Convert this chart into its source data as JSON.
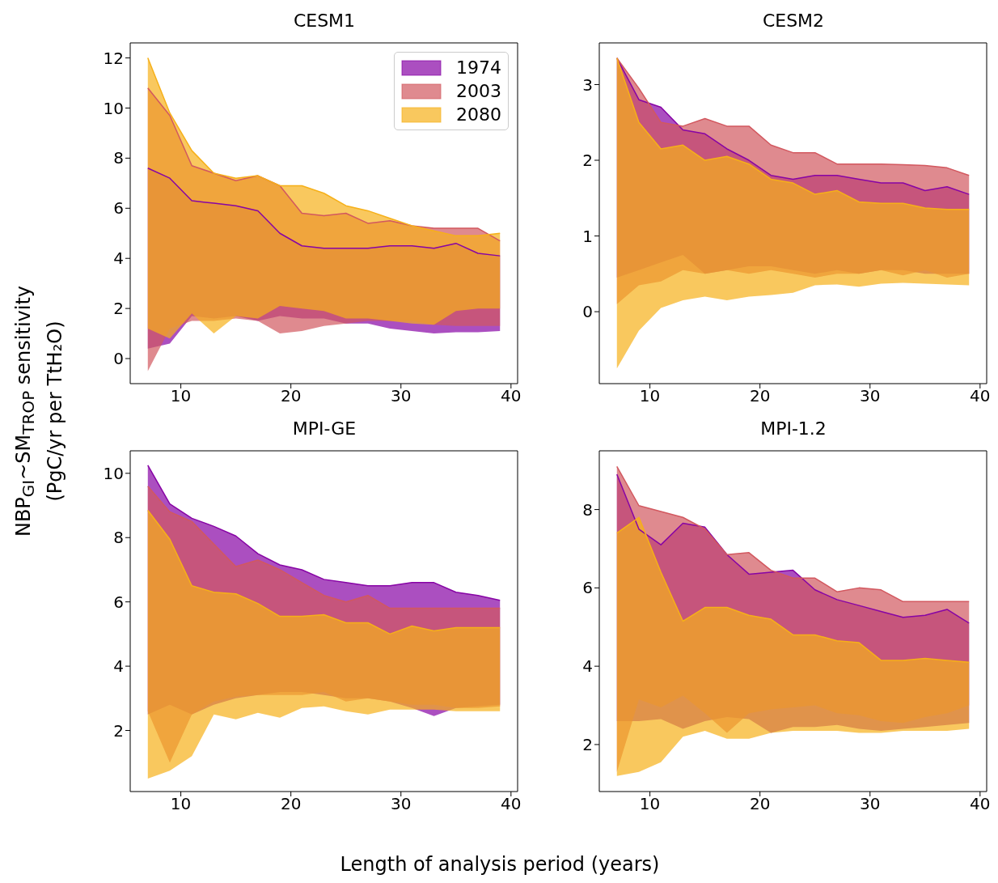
{
  "chart_data": [
    {
      "type": "line",
      "title": "CESM1",
      "ylabel": "NBP$_{GI}$~SM$_{TROP}$ sensitivity\n(PgC/yr per TtH₂O)",
      "x": [
        7,
        9,
        11,
        13,
        15,
        17,
        19,
        21,
        23,
        25,
        27,
        29,
        31,
        33,
        35,
        37,
        39
      ],
      "xlim": [
        5.4,
        40.6
      ],
      "xticks": [
        10,
        20,
        30,
        40
      ],
      "ylim": [
        -1.0,
        12.6
      ],
      "yticks": [
        0,
        2,
        4,
        6,
        8,
        10,
        12
      ],
      "legend": "top right",
      "series": [
        {
          "name": "1974",
          "color": "#8704a5",
          "lower": [
            0.4,
            0.6,
            1.7,
            1.6,
            1.7,
            1.5,
            1.7,
            1.6,
            1.6,
            1.4,
            1.4,
            1.2,
            1.1,
            1.0,
            1.05,
            1.05,
            1.1
          ],
          "upper": [
            7.6,
            7.2,
            6.3,
            6.2,
            6.1,
            5.9,
            5.0,
            4.5,
            4.4,
            4.4,
            4.4,
            4.5,
            4.5,
            4.4,
            4.6,
            4.2,
            4.1
          ],
          "values": [
            7.6,
            7.2,
            6.3,
            6.2,
            6.1,
            5.9,
            5.0,
            4.5,
            4.4,
            4.4,
            4.4,
            4.5,
            4.5,
            4.4,
            4.6,
            4.2,
            4.1
          ]
        },
        {
          "name": "2003",
          "color": "#d2585f",
          "lower": [
            -0.5,
            1.2,
            1.5,
            1.5,
            1.6,
            1.5,
            1.0,
            1.1,
            1.3,
            1.4,
            1.5,
            1.5,
            1.5,
            1.35,
            1.3,
            1.3,
            1.3
          ],
          "upper": [
            10.8,
            9.7,
            7.7,
            7.4,
            7.1,
            7.3,
            6.9,
            5.8,
            5.7,
            5.8,
            5.4,
            5.5,
            5.3,
            5.2,
            5.2,
            5.2,
            4.7
          ],
          "values": [
            10.8,
            9.7,
            7.7,
            7.4,
            7.1,
            7.3,
            6.9,
            5.8,
            5.7,
            5.8,
            5.4,
            5.5,
            5.3,
            5.2,
            5.2,
            5.2,
            4.7
          ]
        },
        {
          "name": "2080",
          "color": "#f6b019",
          "lower": [
            1.2,
            0.8,
            1.8,
            1.0,
            1.7,
            1.6,
            2.1,
            2.0,
            1.9,
            1.6,
            1.6,
            1.5,
            1.4,
            1.35,
            1.9,
            2.0,
            2.0
          ],
          "upper": [
            12.0,
            9.8,
            8.3,
            7.4,
            7.2,
            7.3,
            6.9,
            6.9,
            6.6,
            6.1,
            5.9,
            5.6,
            5.3,
            5.1,
            4.9,
            4.9,
            5.0
          ],
          "values": [
            12.0,
            9.8,
            8.3,
            7.4,
            7.2,
            7.3,
            6.9,
            6.9,
            6.6,
            6.1,
            5.9,
            5.6,
            5.3,
            5.1,
            4.9,
            4.9,
            5.0
          ]
        }
      ]
    },
    {
      "type": "line",
      "title": "CESM2",
      "x": [
        7,
        9,
        11,
        13,
        15,
        17,
        19,
        21,
        23,
        25,
        27,
        29,
        31,
        33,
        35,
        37,
        39
      ],
      "xlim": [
        5.4,
        40.6
      ],
      "xticks": [
        10,
        20,
        30,
        40
      ],
      "ylim": [
        -0.95,
        3.55
      ],
      "yticks": [
        0,
        1,
        2,
        3
      ],
      "series": [
        {
          "color": "#8704a5",
          "lower": [
            0.45,
            0.55,
            0.65,
            0.75,
            0.5,
            0.55,
            0.6,
            0.6,
            0.55,
            0.5,
            0.55,
            0.5,
            0.55,
            0.55,
            0.5,
            0.5,
            0.5
          ],
          "upper": [
            3.35,
            2.8,
            2.7,
            2.4,
            2.35,
            2.15,
            2.0,
            1.8,
            1.75,
            1.8,
            1.8,
            1.75,
            1.7,
            1.7,
            1.6,
            1.65,
            1.55
          ],
          "values": [
            3.35,
            2.8,
            2.7,
            2.4,
            2.35,
            2.15,
            2.0,
            1.8,
            1.75,
            1.8,
            1.8,
            1.75,
            1.7,
            1.7,
            1.6,
            1.65,
            1.55
          ]
        },
        {
          "color": "#d2585f",
          "lower": [
            0.1,
            0.35,
            0.4,
            0.55,
            0.5,
            0.55,
            0.5,
            0.55,
            0.5,
            0.45,
            0.5,
            0.5,
            0.55,
            0.48,
            0.55,
            0.45,
            0.5
          ],
          "upper": [
            3.35,
            2.95,
            2.5,
            2.45,
            2.55,
            2.45,
            2.45,
            2.2,
            2.1,
            2.1,
            1.95,
            1.95,
            1.95,
            1.94,
            1.93,
            1.9,
            1.8
          ],
          "values": [
            3.35,
            2.95,
            2.5,
            2.45,
            2.55,
            2.45,
            2.45,
            2.2,
            2.1,
            2.1,
            1.95,
            1.95,
            1.95,
            1.94,
            1.93,
            1.9,
            1.8
          ]
        },
        {
          "color": "#f6b019",
          "lower": [
            -0.75,
            -0.25,
            0.05,
            0.15,
            0.2,
            0.15,
            0.2,
            0.22,
            0.25,
            0.35,
            0.36,
            0.33,
            0.37,
            0.38,
            0.37,
            0.36,
            0.35
          ],
          "upper": [
            3.35,
            2.5,
            2.15,
            2.2,
            2.0,
            2.05,
            1.95,
            1.75,
            1.7,
            1.55,
            1.6,
            1.45,
            1.43,
            1.43,
            1.37,
            1.35,
            1.35
          ],
          "values": [
            3.35,
            2.5,
            2.15,
            2.2,
            2.0,
            2.05,
            1.95,
            1.75,
            1.7,
            1.55,
            1.6,
            1.45,
            1.43,
            1.43,
            1.37,
            1.35,
            1.35
          ]
        }
      ]
    },
    {
      "type": "line",
      "title": "MPI-GE",
      "xlabel": "Length of analysis period (years)",
      "x": [
        7,
        9,
        11,
        13,
        15,
        17,
        19,
        21,
        23,
        25,
        27,
        29,
        31,
        33,
        35,
        37,
        39
      ],
      "xlim": [
        5.4,
        40.6
      ],
      "xticks": [
        10,
        20,
        30,
        40
      ],
      "ylim": [
        0.1,
        10.7
      ],
      "yticks": [
        2,
        4,
        6,
        8,
        10
      ],
      "series": [
        {
          "color": "#8704a5",
          "lower": [
            2.5,
            2.8,
            2.5,
            2.8,
            3.0,
            3.1,
            3.2,
            3.2,
            3.1,
            3.0,
            3.0,
            2.9,
            2.7,
            2.45,
            2.7,
            2.75,
            2.8
          ],
          "upper": [
            10.25,
            9.05,
            8.6,
            8.35,
            8.05,
            7.5,
            7.15,
            7.0,
            6.7,
            6.6,
            6.5,
            6.5,
            6.6,
            6.6,
            6.3,
            6.2,
            6.05
          ],
          "values": [
            10.25,
            9.05,
            8.6,
            8.35,
            8.05,
            7.5,
            7.15,
            7.0,
            6.7,
            6.6,
            6.5,
            6.5,
            6.6,
            6.6,
            6.3,
            6.2,
            6.05
          ]
        },
        {
          "color": "#d2585f",
          "lower": [
            2.6,
            1.0,
            2.5,
            2.9,
            3.05,
            3.1,
            3.1,
            3.1,
            3.2,
            2.9,
            3.0,
            2.9,
            2.8,
            2.8,
            2.7,
            2.7,
            2.75
          ],
          "upper": [
            9.6,
            8.8,
            8.5,
            7.8,
            7.1,
            7.3,
            7.0,
            6.6,
            6.2,
            6.0,
            6.2,
            5.8,
            5.8,
            5.8,
            5.8,
            5.8,
            5.8
          ],
          "values": [
            9.6,
            8.8,
            8.5,
            7.8,
            7.1,
            7.3,
            7.0,
            6.6,
            6.2,
            6.0,
            6.2,
            5.8,
            5.8,
            5.8,
            5.8,
            5.8,
            5.8
          ]
        },
        {
          "color": "#f6b019",
          "lower": [
            0.5,
            0.75,
            1.2,
            2.5,
            2.35,
            2.55,
            2.4,
            2.7,
            2.75,
            2.6,
            2.5,
            2.65,
            2.65,
            2.65,
            2.6,
            2.6,
            2.6
          ],
          "upper": [
            8.85,
            7.95,
            6.5,
            6.3,
            6.25,
            5.95,
            5.55,
            5.55,
            5.6,
            5.35,
            5.35,
            5.0,
            5.25,
            5.1,
            5.2,
            5.2,
            5.2
          ],
          "values": [
            8.85,
            7.95,
            6.5,
            6.3,
            6.25,
            5.95,
            5.55,
            5.55,
            5.6,
            5.35,
            5.35,
            5.0,
            5.25,
            5.1,
            5.2,
            5.2,
            5.2
          ]
        }
      ]
    },
    {
      "type": "line",
      "title": "MPI-1.2",
      "x": [
        7,
        9,
        11,
        13,
        15,
        17,
        19,
        21,
        23,
        25,
        27,
        29,
        31,
        33,
        35,
        37,
        39
      ],
      "xlim": [
        5.4,
        40.6
      ],
      "xticks": [
        10,
        20,
        30,
        40
      ],
      "ylim": [
        0.8,
        9.5
      ],
      "yticks": [
        2,
        4,
        6,
        8
      ],
      "series": [
        {
          "color": "#8704a5",
          "lower": [
            2.6,
            2.6,
            2.65,
            2.4,
            2.6,
            2.7,
            2.65,
            2.3,
            2.45,
            2.45,
            2.5,
            2.4,
            2.35,
            2.4,
            2.45,
            2.5,
            2.55
          ],
          "upper": [
            8.9,
            7.5,
            7.1,
            7.65,
            7.55,
            6.85,
            6.35,
            6.4,
            6.45,
            5.95,
            5.7,
            5.55,
            5.4,
            5.25,
            5.3,
            5.45,
            5.1
          ],
          "values": [
            8.9,
            7.5,
            7.1,
            7.65,
            7.55,
            6.85,
            6.35,
            6.4,
            6.45,
            5.95,
            5.7,
            5.55,
            5.4,
            5.25,
            5.3,
            5.45,
            5.1
          ]
        },
        {
          "color": "#d2585f",
          "lower": [
            1.3,
            3.15,
            2.95,
            3.25,
            2.8,
            2.3,
            2.8,
            2.9,
            2.95,
            3.0,
            2.8,
            2.75,
            2.6,
            2.55,
            2.7,
            2.8,
            3.0
          ],
          "upper": [
            9.1,
            8.1,
            7.95,
            7.8,
            7.5,
            6.85,
            6.9,
            6.45,
            6.25,
            6.25,
            5.9,
            6.0,
            5.95,
            5.65,
            5.65,
            5.65,
            5.65
          ],
          "values": [
            9.1,
            8.1,
            7.95,
            7.8,
            7.5,
            6.85,
            6.9,
            6.45,
            6.25,
            6.25,
            5.9,
            6.0,
            5.95,
            5.65,
            5.65,
            5.65,
            5.65
          ]
        },
        {
          "color": "#f6b019",
          "lower": [
            1.2,
            1.3,
            1.55,
            2.2,
            2.35,
            2.15,
            2.15,
            2.3,
            2.35,
            2.35,
            2.35,
            2.3,
            2.3,
            2.35,
            2.35,
            2.35,
            2.4
          ],
          "upper": [
            7.4,
            7.8,
            6.4,
            5.15,
            5.5,
            5.5,
            5.3,
            5.2,
            4.8,
            4.8,
            4.65,
            4.6,
            4.15,
            4.15,
            4.2,
            4.15,
            4.1
          ],
          "values": [
            7.4,
            7.8,
            6.4,
            5.15,
            5.5,
            5.5,
            5.3,
            5.2,
            4.8,
            4.8,
            4.65,
            4.6,
            4.15,
            4.15,
            4.2,
            4.15,
            4.1
          ]
        }
      ]
    }
  ]
}
